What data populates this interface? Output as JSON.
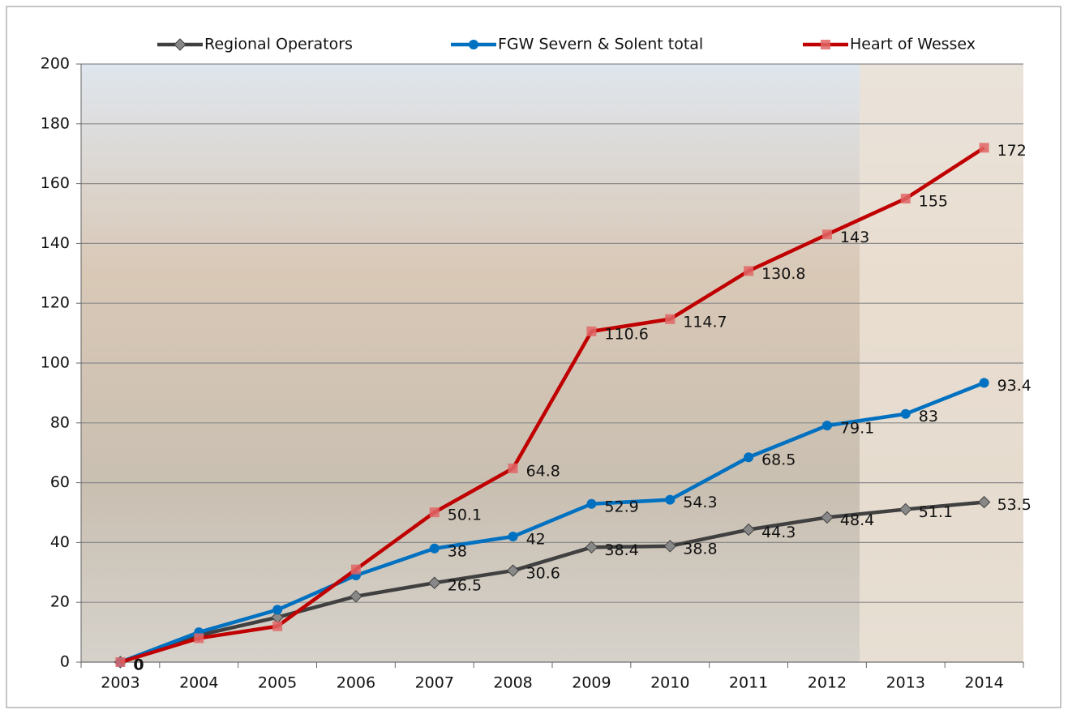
{
  "chart_data": {
    "type": "line",
    "categories": [
      "2003",
      "2004",
      "2005",
      "2006",
      "2007",
      "2008",
      "2009",
      "2010",
      "2011",
      "2012",
      "2013",
      "2014"
    ],
    "ylim": [
      0,
      200
    ],
    "yticks": [
      0,
      20,
      40,
      60,
      80,
      100,
      120,
      140,
      160,
      180,
      200
    ],
    "grid": true,
    "legend": "top",
    "series": [
      {
        "name": "Regional Operators",
        "color": "#404040",
        "marker": "diamond",
        "values": [
          0,
          9,
          15,
          22,
          26.5,
          30.6,
          38.4,
          38.8,
          44.3,
          48.4,
          51.1,
          53.5
        ],
        "data_labels": [
          true,
          false,
          false,
          false,
          true,
          true,
          true,
          true,
          true,
          true,
          true,
          true
        ]
      },
      {
        "name": "FGW Severn & Solent total",
        "color": "#0070c0",
        "marker": "circle",
        "values": [
          0,
          10,
          17.5,
          29,
          38,
          42,
          52.9,
          54.3,
          68.5,
          79.1,
          83,
          93.4
        ],
        "data_labels": [
          false,
          false,
          false,
          false,
          true,
          true,
          true,
          true,
          true,
          true,
          true,
          true
        ]
      },
      {
        "name": "Heart of Wessex",
        "color": "#c00000",
        "marker": "square",
        "values": [
          0,
          8,
          12,
          31,
          50.1,
          64.8,
          110.6,
          114.7,
          130.8,
          143,
          155,
          172
        ],
        "data_labels": [
          false,
          false,
          false,
          false,
          true,
          true,
          true,
          true,
          true,
          true,
          true,
          true
        ]
      }
    ]
  }
}
